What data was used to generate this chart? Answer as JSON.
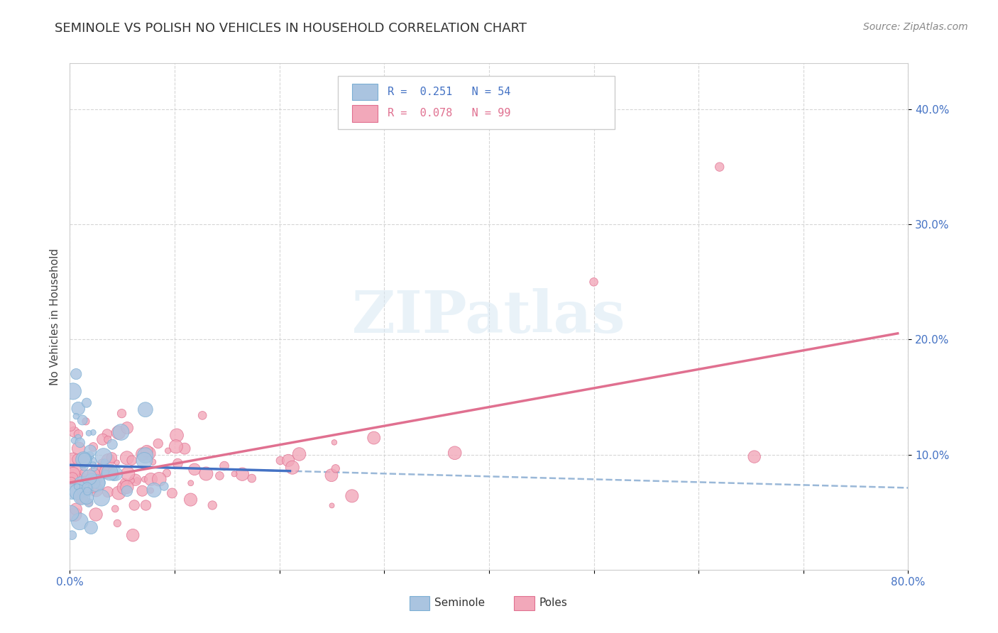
{
  "title": "SEMINOLE VS POLISH NO VEHICLES IN HOUSEHOLD CORRELATION CHART",
  "source": "Source: ZipAtlas.com",
  "ylabel": "No Vehicles in Household",
  "seminole_color": "#aac4e0",
  "poles_color": "#f2a8ba",
  "seminole_edge": "#7bafd4",
  "poles_edge": "#e07090",
  "regression_blue": "#4472c4",
  "regression_pink": "#e07090",
  "dash_color": "#9ab8d8",
  "watermark": "ZIPatlas",
  "background_color": "#ffffff",
  "seminole_R": 0.251,
  "seminole_N": 54,
  "poles_R": 0.078,
  "poles_N": 99,
  "xlim": [
    0,
    0.8
  ],
  "ylim": [
    0,
    0.44
  ],
  "yticks": [
    0.1,
    0.2,
    0.3,
    0.4
  ],
  "ytick_labels": [
    "10.0%",
    "20.0%",
    "30.0%",
    "40.0%"
  ],
  "xtick_labels_show": [
    "0.0%",
    "80.0%"
  ],
  "title_fontsize": 13,
  "tick_fontsize": 11
}
